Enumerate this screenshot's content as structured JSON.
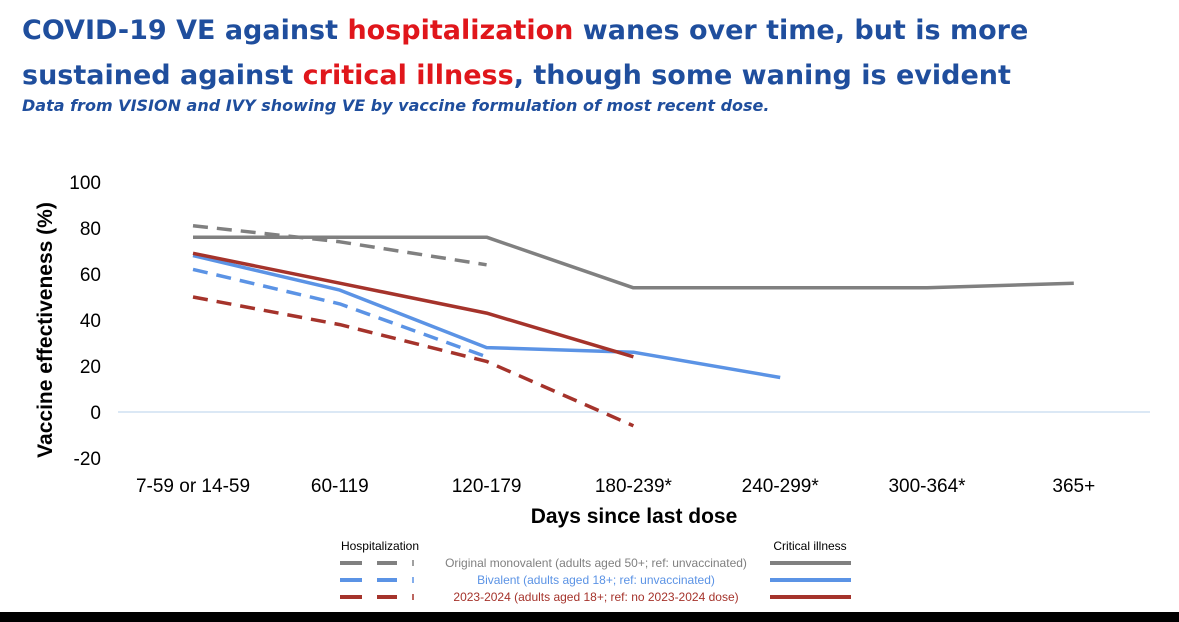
{
  "title": {
    "part1": "COVID-19 VE against ",
    "highlight1": "hospitalization",
    "part2": " wanes over time, but is more sustained against ",
    "highlight2": "critical illness",
    "part3": ", though some waning is evident"
  },
  "subtitle": "Data from VISION and IVY showing VE by vaccine formulation of most recent dose.",
  "colors": {
    "title_blue": "#1f4e9d",
    "highlight_red": "#e0161b",
    "gray": "#808080",
    "blue": "#5b93e5",
    "red": "#a5332b",
    "zero_line": "#cfe0f2"
  },
  "legend": {
    "hosp_heading": "Hospitalization",
    "crit_heading": "Critical illness"
  },
  "chart_data": {
    "type": "line",
    "xlabel": "Days since last dose",
    "ylabel": "Vaccine effectiveness (%)",
    "ylim": [
      -20,
      100
    ],
    "yticks": [
      -20,
      0,
      20,
      40,
      60,
      80,
      100
    ],
    "categories": [
      "7-59 or 14-59",
      "60-119",
      "120-179",
      "180-239*",
      "240-299*",
      "300-364*",
      "365+"
    ],
    "series": [
      {
        "name": "Original monovalent (adults aged 50+; ref: unvaccinated)",
        "outcome": "Hospitalization",
        "style": "dashed",
        "color": "#808080",
        "values": [
          81,
          74,
          64,
          null,
          null,
          null,
          null
        ]
      },
      {
        "name": "Original monovalent (adults aged 50+; ref: unvaccinated)",
        "outcome": "Critical illness",
        "style": "solid",
        "color": "#808080",
        "values": [
          76,
          76,
          76,
          54,
          54,
          54,
          56
        ]
      },
      {
        "name": "Bivalent (adults aged 18+; ref: unvaccinated)",
        "outcome": "Hospitalization",
        "style": "dashed",
        "color": "#5b93e5",
        "values": [
          62,
          47,
          24,
          null,
          null,
          null,
          null
        ]
      },
      {
        "name": "Bivalent (adults aged 18+; ref: unvaccinated)",
        "outcome": "Critical illness",
        "style": "solid",
        "color": "#5b93e5",
        "values": [
          68,
          53,
          28,
          26,
          15,
          null,
          null
        ]
      },
      {
        "name": "2023-2024 (adults aged 18+; ref: no 2023-2024 dose)",
        "outcome": "Hospitalization",
        "style": "dashed",
        "color": "#a5332b",
        "values": [
          50,
          38,
          22,
          -6,
          null,
          null,
          null
        ]
      },
      {
        "name": "2023-2024 (adults aged 18+; ref: no 2023-2024 dose)",
        "outcome": "Critical illness",
        "style": "solid",
        "color": "#a5332b",
        "values": [
          69,
          56,
          43,
          24,
          null,
          null,
          null
        ]
      }
    ]
  }
}
